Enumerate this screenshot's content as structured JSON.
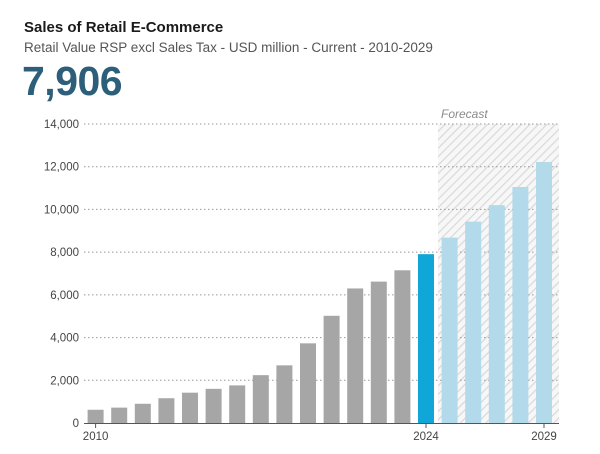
{
  "header": {
    "title": "Sales of Retail E-Commerce",
    "subtitle": "Retail Value RSP excl Sales Tax - USD million - Current - 2010-2029",
    "headline_value": "7,906"
  },
  "chart_data": {
    "type": "bar",
    "title": "Sales of Retail E-Commerce",
    "ylabel": "USD million",
    "xlabel": "",
    "ylim": [
      0,
      14000
    ],
    "yticks": [
      0,
      2000,
      4000,
      6000,
      8000,
      10000,
      12000,
      14000
    ],
    "ytick_labels": [
      "0",
      "2,000",
      "4,000",
      "6,000",
      "8,000",
      "10,000",
      "12,000",
      "14,000"
    ],
    "xtick_labels": [
      {
        "year": 2010,
        "label": "2010"
      },
      {
        "year": 2024,
        "label": "2024"
      },
      {
        "year": 2029,
        "label": "2029"
      }
    ],
    "forecast_label": "Forecast",
    "forecast_start_year": 2025,
    "current_year": 2024,
    "grid": true,
    "colors": {
      "historical": "#a6a6a6",
      "current": "#10a7d8",
      "forecast": "#b3daea",
      "forecast_shade": "#d9d9d9",
      "grid": "#999999",
      "axis": "#555555"
    },
    "categories": [
      2010,
      2011,
      2012,
      2013,
      2014,
      2015,
      2016,
      2017,
      2018,
      2019,
      2020,
      2021,
      2022,
      2023,
      2024,
      2025,
      2026,
      2027,
      2028,
      2029
    ],
    "values": [
      620,
      720,
      900,
      1160,
      1420,
      1600,
      1760,
      2240,
      2700,
      3730,
      5020,
      6300,
      6620,
      7150,
      7906,
      8680,
      9430,
      10200,
      11050,
      12220
    ]
  }
}
